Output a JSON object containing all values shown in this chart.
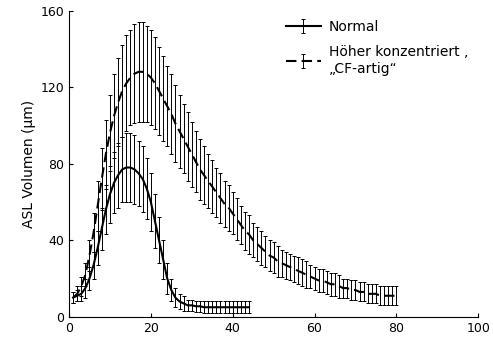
{
  "normal_x": [
    1,
    2,
    3,
    4,
    5,
    6,
    7,
    8,
    9,
    10,
    11,
    12,
    13,
    14,
    15,
    16,
    17,
    18,
    19,
    20,
    21,
    22,
    23,
    24,
    25,
    26,
    27,
    28,
    29,
    30,
    31,
    32,
    33,
    34,
    35,
    36,
    37,
    38,
    39,
    40,
    41,
    42,
    43,
    44
  ],
  "normal_y": [
    10,
    11,
    12,
    15,
    20,
    27,
    36,
    46,
    56,
    64,
    70,
    74,
    77,
    78,
    78,
    77,
    75,
    72,
    67,
    60,
    50,
    40,
    30,
    20,
    14,
    10,
    8,
    7,
    6,
    6,
    5.5,
    5.5,
    5,
    5,
    5,
    5,
    5,
    5,
    5,
    5,
    5,
    5,
    5,
    5
  ],
  "normal_yerr": [
    3,
    3,
    4,
    5,
    6,
    7,
    9,
    11,
    13,
    15,
    16,
    17,
    17,
    18,
    18,
    18,
    17,
    17,
    16,
    15,
    14,
    12,
    10,
    8,
    6,
    5,
    4,
    4,
    3,
    3,
    3,
    3,
    3,
    3,
    3,
    3,
    3,
    3,
    3,
    3,
    3,
    3,
    3,
    3
  ],
  "hyper_x": [
    1,
    2,
    3,
    4,
    5,
    6,
    7,
    8,
    9,
    10,
    11,
    12,
    13,
    14,
    15,
    16,
    17,
    18,
    19,
    20,
    21,
    22,
    23,
    24,
    25,
    26,
    27,
    28,
    29,
    30,
    31,
    32,
    33,
    34,
    35,
    36,
    37,
    38,
    39,
    40,
    41,
    42,
    43,
    44,
    45,
    46,
    47,
    48,
    49,
    50,
    51,
    52,
    53,
    54,
    55,
    56,
    57,
    58,
    59,
    60,
    61,
    62,
    63,
    64,
    65,
    66,
    67,
    68,
    69,
    70,
    71,
    72,
    73,
    74,
    75,
    76,
    77,
    78,
    79,
    80
  ],
  "hyper_y": [
    10,
    12,
    16,
    22,
    32,
    44,
    58,
    72,
    85,
    96,
    105,
    112,
    118,
    122,
    125,
    127,
    128,
    128,
    127,
    125,
    122,
    118,
    114,
    110,
    106,
    101,
    97,
    93,
    89,
    85,
    81,
    77,
    74,
    71,
    68,
    65,
    62,
    59,
    57,
    54,
    51,
    48,
    45,
    43,
    40,
    38,
    36,
    34,
    32,
    31,
    29,
    28,
    27,
    26,
    25,
    24,
    23,
    22,
    21,
    20,
    19,
    19,
    18,
    17,
    17,
    16,
    15,
    15,
    14,
    14,
    13,
    13,
    12,
    12,
    12,
    11,
    11,
    11,
    11,
    11
  ],
  "hyper_yerr": [
    3,
    4,
    5,
    6,
    8,
    10,
    13,
    16,
    18,
    20,
    22,
    23,
    24,
    25,
    25,
    26,
    26,
    26,
    25,
    25,
    24,
    23,
    22,
    21,
    21,
    20,
    19,
    18,
    18,
    17,
    16,
    16,
    15,
    14,
    14,
    13,
    13,
    12,
    12,
    11,
    11,
    10,
    10,
    10,
    9,
    9,
    9,
    8,
    8,
    8,
    8,
    7,
    7,
    7,
    7,
    7,
    7,
    7,
    6,
    6,
    6,
    6,
    6,
    6,
    6,
    6,
    5,
    5,
    5,
    5,
    5,
    5,
    5,
    5,
    5,
    5,
    5,
    5,
    5,
    5
  ],
  "ylabel": "ASL Volumen (µm)",
  "xlim": [
    0,
    100
  ],
  "ylim": [
    0,
    160
  ],
  "yticks": [
    0,
    40,
    80,
    120,
    160
  ],
  "xticks": [
    0,
    20,
    40,
    60,
    80,
    100
  ],
  "legend_normal": "Normal",
  "legend_hyper": "Höher konzentriert ,\n„CF-artig“",
  "line_color": "#000000",
  "bg_color": "#ffffff",
  "line_width": 1.5,
  "elinewidth": 0.7,
  "capsize": 1.5,
  "capthick": 0.7
}
